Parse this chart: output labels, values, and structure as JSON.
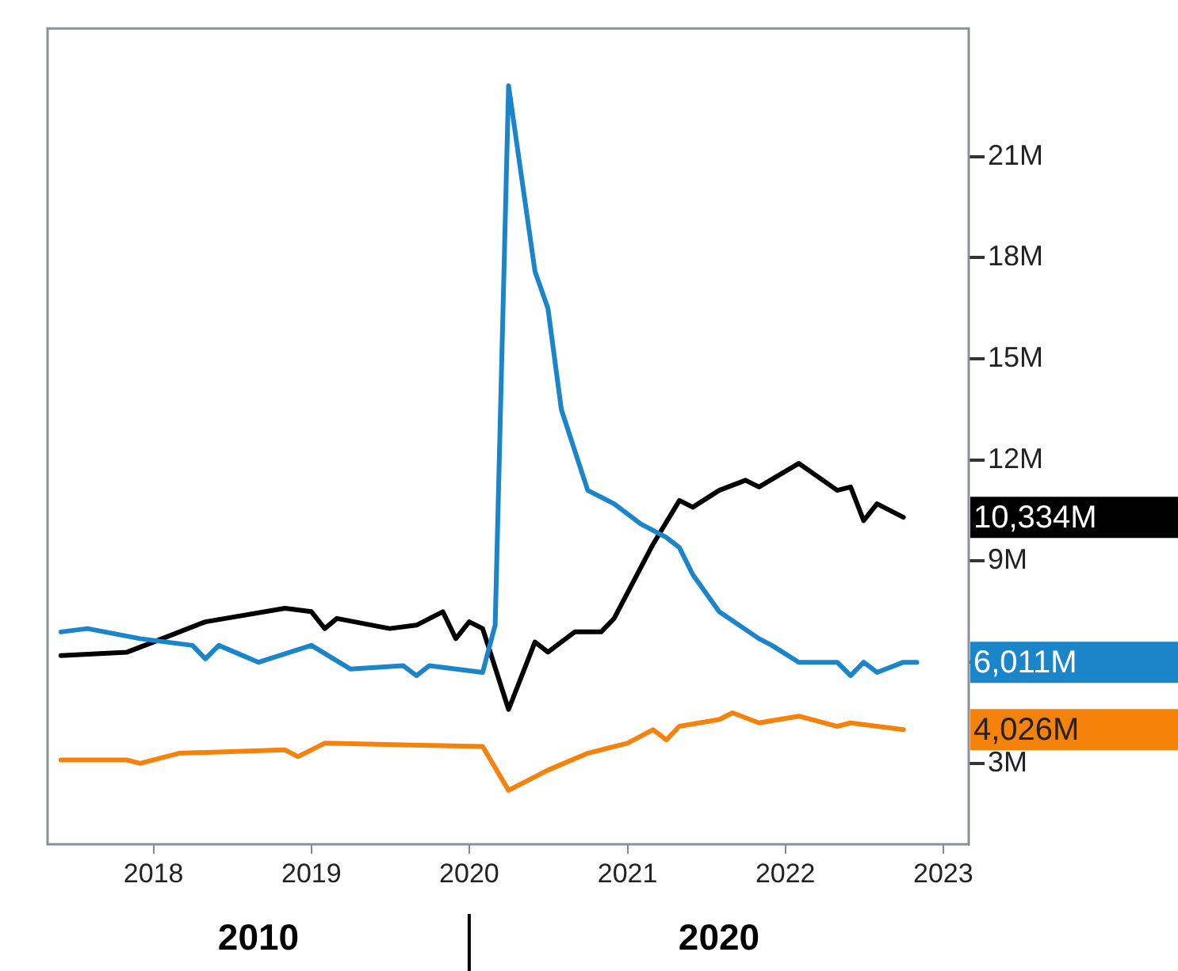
{
  "chart_data": {
    "type": "line",
    "xlim": [
      "2017-05",
      "2023-03"
    ],
    "xticks": [
      "2018",
      "2019",
      "2020",
      "2021",
      "2022",
      "2023"
    ],
    "ylim": [
      0.6,
      24.8
    ],
    "yticks": [
      {
        "value": 3,
        "label": "3M"
      },
      {
        "value": 6,
        "label": null
      },
      {
        "value": 9,
        "label": "9M"
      },
      {
        "value": 12,
        "label": "12M"
      },
      {
        "value": 15,
        "label": "15M"
      },
      {
        "value": 18,
        "label": "18M"
      },
      {
        "value": 21,
        "label": "21M"
      }
    ],
    "grid": false,
    "legend": false,
    "annotations": [
      "2010",
      "2020",
      {
        "text": "6,011M",
        "x": "2022-11",
        "y": 6.0
      },
      {
        "text": "4,026M",
        "x": "2022-10",
        "y": 4.0
      },
      {
        "text": "10,334M",
        "x": "2022-10",
        "y": 10.3
      }
    ],
    "series": [
      {
        "color": "#1a85c8",
        "x": [
          "2017-06",
          "2017-08",
          "2017-12",
          "2018-04",
          "2018-05",
          "2018-06",
          "2018-09",
          "2019-01",
          "2019-04",
          "2019-08",
          "2019-09",
          "2019-10",
          "2020-02",
          "2020-03",
          "2020-04",
          "2020-06",
          "2020-07",
          "2020-08",
          "2020-10",
          "2020-12",
          "2021-02",
          "2021-04",
          "2021-05",
          "2021-06",
          "2021-08",
          "2021-11",
          "2021-12",
          "2022-02",
          "2022-05",
          "2022-06",
          "2022-07",
          "2022-08",
          "2022-10",
          "2022-11"
        ],
        "values": [
          6.9,
          7.0,
          6.7,
          6.5,
          6.1,
          6.5,
          6.0,
          6.5,
          5.8,
          5.9,
          5.6,
          5.9,
          5.7,
          7.1,
          23.1,
          17.6,
          16.5,
          13.5,
          11.1,
          10.7,
          10.1,
          9.7,
          9.4,
          8.6,
          7.5,
          6.7,
          6.5,
          6.0,
          6.0,
          5.6,
          6.0,
          5.7,
          6.0,
          6.0
        ]
      },
      {
        "color": "#f5820a",
        "x": [
          "2017-06",
          "2017-11",
          "2017-12",
          "2018-03",
          "2018-11",
          "2018-12",
          "2019-02",
          "2020-02",
          "2020-04",
          "2020-07",
          "2020-10",
          "2021-01",
          "2021-03",
          "2021-04",
          "2021-05",
          "2021-08",
          "2021-09",
          "2021-11",
          "2022-02",
          "2022-05",
          "2022-06",
          "2022-10"
        ],
        "values": [
          3.1,
          3.1,
          3.0,
          3.3,
          3.4,
          3.2,
          3.6,
          3.5,
          2.2,
          2.8,
          3.3,
          3.6,
          4.0,
          3.7,
          4.1,
          4.3,
          4.5,
          4.2,
          4.4,
          4.1,
          4.2,
          4.0
        ]
      },
      {
        "color": "#000000",
        "x": [
          "2017-06",
          "2017-11",
          "2018-01",
          "2018-05",
          "2018-11",
          "2019-01",
          "2019-02",
          "2019-03",
          "2019-07",
          "2019-09",
          "2019-11",
          "2019-12",
          "2020-01",
          "2020-02",
          "2020-04",
          "2020-06",
          "2020-07",
          "2020-09",
          "2020-11",
          "2020-12",
          "2021-03",
          "2021-05",
          "2021-06",
          "2021-08",
          "2021-10",
          "2021-11",
          "2022-02",
          "2022-05",
          "2022-06",
          "2022-07",
          "2022-08",
          "2022-10"
        ],
        "values": [
          6.2,
          6.3,
          6.6,
          7.2,
          7.6,
          7.5,
          7.0,
          7.3,
          7.0,
          7.1,
          7.5,
          6.7,
          7.2,
          7.0,
          4.6,
          6.6,
          6.3,
          6.9,
          6.9,
          7.3,
          9.5,
          10.8,
          10.6,
          11.1,
          11.4,
          11.2,
          11.9,
          11.1,
          11.2,
          10.2,
          10.7,
          10.3
        ]
      }
    ]
  }
}
